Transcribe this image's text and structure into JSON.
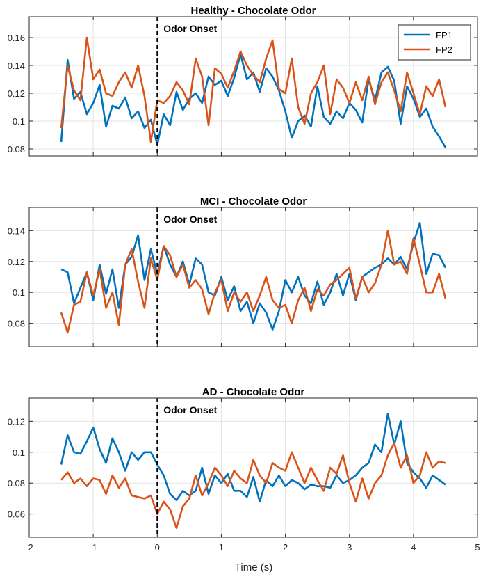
{
  "chart_data": [
    {
      "type": "line",
      "title": "Healthy - Chocolate Odor",
      "annotation": "Odor Onset",
      "annotation_x": 0,
      "xlim": [
        -2,
        5
      ],
      "ylim": [
        0.075,
        0.175
      ],
      "xticks": [
        -2,
        -1,
        0,
        1,
        2,
        3,
        4,
        5
      ],
      "yticks": [
        0.08,
        0.1,
        0.12,
        0.14,
        0.16
      ],
      "ytick_labels": [
        "0.08",
        "0.1",
        "0.12",
        "0.14",
        "0.16"
      ],
      "grid": true,
      "legend_position": "top-right",
      "series": [
        {
          "name": "FP1",
          "color": "#0072BD",
          "x": [
            -1.5,
            -1.4,
            -1.3,
            -1.2,
            -1.1,
            -1.0,
            -0.9,
            -0.8,
            -0.7,
            -0.6,
            -0.5,
            -0.4,
            -0.3,
            -0.2,
            -0.1,
            0.0,
            0.1,
            0.2,
            0.3,
            0.4,
            0.5,
            0.6,
            0.7,
            0.8,
            0.9,
            1.0,
            1.1,
            1.2,
            1.3,
            1.4,
            1.5,
            1.6,
            1.7,
            1.8,
            1.9,
            2.0,
            2.1,
            2.2,
            2.3,
            2.4,
            2.5,
            2.6,
            2.7,
            2.8,
            2.9,
            3.0,
            3.1,
            3.2,
            3.3,
            3.4,
            3.5,
            3.6,
            3.7,
            3.8,
            3.9,
            4.0,
            4.1,
            4.2,
            4.3,
            4.4,
            4.5
          ],
          "values": [
            0.085,
            0.144,
            0.116,
            0.121,
            0.105,
            0.113,
            0.126,
            0.096,
            0.111,
            0.109,
            0.117,
            0.102,
            0.107,
            0.095,
            0.101,
            0.083,
            0.105,
            0.097,
            0.121,
            0.108,
            0.116,
            0.12,
            0.113,
            0.132,
            0.126,
            0.129,
            0.118,
            0.131,
            0.148,
            0.13,
            0.135,
            0.121,
            0.138,
            0.132,
            0.122,
            0.107,
            0.088,
            0.1,
            0.104,
            0.096,
            0.125,
            0.103,
            0.098,
            0.107,
            0.102,
            0.113,
            0.108,
            0.099,
            0.13,
            0.115,
            0.135,
            0.139,
            0.129,
            0.098,
            0.125,
            0.116,
            0.103,
            0.109,
            0.096,
            0.089,
            0.081
          ]
        },
        {
          "name": "FP2",
          "color": "#D95319",
          "x": [
            -1.5,
            -1.4,
            -1.3,
            -1.2,
            -1.1,
            -1.0,
            -0.9,
            -0.8,
            -0.7,
            -0.6,
            -0.5,
            -0.4,
            -0.3,
            -0.2,
            -0.1,
            0.0,
            0.1,
            0.2,
            0.3,
            0.4,
            0.5,
            0.6,
            0.7,
            0.8,
            0.9,
            1.0,
            1.1,
            1.2,
            1.3,
            1.4,
            1.5,
            1.6,
            1.7,
            1.8,
            1.9,
            2.0,
            2.1,
            2.2,
            2.3,
            2.4,
            2.5,
            2.6,
            2.7,
            2.8,
            2.9,
            3.0,
            3.1,
            3.2,
            3.3,
            3.4,
            3.5,
            3.6,
            3.7,
            3.8,
            3.9,
            4.0,
            4.1,
            4.2,
            4.3,
            4.4,
            4.5
          ],
          "values": [
            0.095,
            0.14,
            0.122,
            0.115,
            0.16,
            0.13,
            0.137,
            0.12,
            0.118,
            0.128,
            0.135,
            0.124,
            0.14,
            0.118,
            0.085,
            0.115,
            0.113,
            0.118,
            0.128,
            0.122,
            0.112,
            0.145,
            0.132,
            0.097,
            0.138,
            0.134,
            0.124,
            0.136,
            0.15,
            0.14,
            0.133,
            0.128,
            0.145,
            0.158,
            0.123,
            0.12,
            0.145,
            0.11,
            0.098,
            0.12,
            0.128,
            0.14,
            0.105,
            0.13,
            0.124,
            0.113,
            0.128,
            0.115,
            0.132,
            0.112,
            0.128,
            0.135,
            0.122,
            0.107,
            0.135,
            0.12,
            0.105,
            0.125,
            0.118,
            0.13,
            0.11
          ]
        }
      ]
    },
    {
      "type": "line",
      "title": "MCI - Chocolate Odor",
      "annotation": "Odor Onset",
      "annotation_x": 0,
      "xlim": [
        -2,
        5
      ],
      "ylim": [
        0.065,
        0.155
      ],
      "xticks": [
        -2,
        -1,
        0,
        1,
        2,
        3,
        4,
        5
      ],
      "yticks": [
        0.08,
        0.1,
        0.12,
        0.14
      ],
      "ytick_labels": [
        "0.08",
        "0.1",
        "0.12",
        "0.14"
      ],
      "grid": true,
      "series": [
        {
          "name": "FP1",
          "color": "#0072BD",
          "x": [
            -1.5,
            -1.4,
            -1.3,
            -1.2,
            -1.1,
            -1.0,
            -0.9,
            -0.8,
            -0.7,
            -0.6,
            -0.5,
            -0.4,
            -0.3,
            -0.2,
            -0.1,
            0.0,
            0.1,
            0.2,
            0.3,
            0.4,
            0.5,
            0.6,
            0.7,
            0.8,
            0.9,
            1.0,
            1.1,
            1.2,
            1.3,
            1.4,
            1.5,
            1.6,
            1.7,
            1.8,
            1.9,
            2.0,
            2.1,
            2.2,
            2.3,
            2.4,
            2.5,
            2.6,
            2.7,
            2.8,
            2.9,
            3.0,
            3.1,
            3.2,
            3.3,
            3.4,
            3.5,
            3.6,
            3.7,
            3.8,
            3.9,
            4.0,
            4.1,
            4.2,
            4.3,
            4.4,
            4.5
          ],
          "values": [
            0.115,
            0.113,
            0.093,
            0.103,
            0.113,
            0.095,
            0.118,
            0.099,
            0.115,
            0.09,
            0.118,
            0.123,
            0.137,
            0.108,
            0.128,
            0.112,
            0.13,
            0.118,
            0.11,
            0.12,
            0.105,
            0.122,
            0.118,
            0.1,
            0.098,
            0.11,
            0.095,
            0.104,
            0.088,
            0.094,
            0.08,
            0.093,
            0.087,
            0.076,
            0.088,
            0.108,
            0.1,
            0.11,
            0.098,
            0.093,
            0.107,
            0.092,
            0.1,
            0.112,
            0.098,
            0.112,
            0.095,
            0.11,
            0.113,
            0.116,
            0.118,
            0.122,
            0.118,
            0.123,
            0.115,
            0.132,
            0.145,
            0.112,
            0.125,
            0.124,
            0.116
          ]
        },
        {
          "name": "FP2",
          "color": "#D95319",
          "x": [
            -1.5,
            -1.4,
            -1.3,
            -1.2,
            -1.1,
            -1.0,
            -0.9,
            -0.8,
            -0.7,
            -0.6,
            -0.5,
            -0.4,
            -0.3,
            -0.2,
            -0.1,
            0.0,
            0.1,
            0.2,
            0.3,
            0.4,
            0.5,
            0.6,
            0.7,
            0.8,
            0.9,
            1.0,
            1.1,
            1.2,
            1.3,
            1.4,
            1.5,
            1.6,
            1.7,
            1.8,
            1.9,
            2.0,
            2.1,
            2.2,
            2.3,
            2.4,
            2.5,
            2.6,
            2.7,
            2.8,
            2.9,
            3.0,
            3.1,
            3.2,
            3.3,
            3.4,
            3.5,
            3.6,
            3.7,
            3.8,
            3.9,
            4.0,
            4.1,
            4.2,
            4.3,
            4.4,
            4.5
          ],
          "values": [
            0.087,
            0.074,
            0.092,
            0.094,
            0.113,
            0.098,
            0.115,
            0.09,
            0.1,
            0.079,
            0.118,
            0.128,
            0.107,
            0.09,
            0.122,
            0.108,
            0.13,
            0.124,
            0.11,
            0.118,
            0.103,
            0.108,
            0.102,
            0.086,
            0.1,
            0.108,
            0.088,
            0.1,
            0.094,
            0.1,
            0.088,
            0.098,
            0.11,
            0.095,
            0.09,
            0.092,
            0.08,
            0.095,
            0.103,
            0.088,
            0.102,
            0.098,
            0.105,
            0.108,
            0.112,
            0.116,
            0.096,
            0.11,
            0.1,
            0.106,
            0.118,
            0.14,
            0.118,
            0.12,
            0.112,
            0.135,
            0.118,
            0.1,
            0.1,
            0.112,
            0.096
          ]
        }
      ]
    },
    {
      "type": "line",
      "title": "AD - Chocolate Odor",
      "annotation": "Odor Onset",
      "annotation_x": 0,
      "xlim": [
        -2,
        5
      ],
      "ylim": [
        0.045,
        0.135
      ],
      "xticks": [
        -2,
        -1,
        0,
        1,
        2,
        3,
        4,
        5
      ],
      "xtick_labels": [
        "-2",
        "-1",
        "0",
        "1",
        "2",
        "3",
        "4",
        "5"
      ],
      "yticks": [
        0.06,
        0.08,
        0.1,
        0.12
      ],
      "ytick_labels": [
        "0.06",
        "0.08",
        "0.1",
        "0.12"
      ],
      "xlabel": "Time (s)",
      "grid": true,
      "series": [
        {
          "name": "FP1",
          "color": "#0072BD",
          "x": [
            -1.5,
            -1.4,
            -1.3,
            -1.2,
            -1.1,
            -1.0,
            -0.9,
            -0.8,
            -0.7,
            -0.6,
            -0.5,
            -0.4,
            -0.3,
            -0.2,
            -0.1,
            0.0,
            0.1,
            0.2,
            0.3,
            0.4,
            0.5,
            0.6,
            0.7,
            0.8,
            0.9,
            1.0,
            1.1,
            1.2,
            1.3,
            1.4,
            1.5,
            1.6,
            1.7,
            1.8,
            1.9,
            2.0,
            2.1,
            2.2,
            2.3,
            2.4,
            2.5,
            2.6,
            2.7,
            2.8,
            2.9,
            3.0,
            3.1,
            3.2,
            3.3,
            3.4,
            3.5,
            3.6,
            3.7,
            3.8,
            3.9,
            4.0,
            4.1,
            4.2,
            4.3,
            4.4,
            4.5
          ],
          "values": [
            0.092,
            0.111,
            0.1,
            0.099,
            0.107,
            0.116,
            0.102,
            0.093,
            0.109,
            0.1,
            0.088,
            0.1,
            0.095,
            0.1,
            0.1,
            0.092,
            0.085,
            0.073,
            0.069,
            0.075,
            0.072,
            0.075,
            0.09,
            0.073,
            0.085,
            0.08,
            0.086,
            0.075,
            0.075,
            0.071,
            0.084,
            0.068,
            0.082,
            0.078,
            0.085,
            0.078,
            0.082,
            0.08,
            0.076,
            0.079,
            0.078,
            0.078,
            0.077,
            0.085,
            0.08,
            0.082,
            0.085,
            0.09,
            0.093,
            0.105,
            0.1,
            0.125,
            0.105,
            0.12,
            0.093,
            0.087,
            0.083,
            0.077,
            0.085,
            0.082,
            0.079
          ]
        },
        {
          "name": "FP2",
          "color": "#D95319",
          "x": [
            -1.5,
            -1.4,
            -1.3,
            -1.2,
            -1.1,
            -1.0,
            -0.9,
            -0.8,
            -0.7,
            -0.6,
            -0.5,
            -0.4,
            -0.3,
            -0.2,
            -0.1,
            0.0,
            0.1,
            0.2,
            0.3,
            0.4,
            0.5,
            0.6,
            0.7,
            0.8,
            0.9,
            1.0,
            1.1,
            1.2,
            1.3,
            1.4,
            1.5,
            1.6,
            1.7,
            1.8,
            1.9,
            2.0,
            2.1,
            2.2,
            2.3,
            2.4,
            2.5,
            2.6,
            2.7,
            2.8,
            2.9,
            3.0,
            3.1,
            3.2,
            3.3,
            3.4,
            3.5,
            3.6,
            3.7,
            3.8,
            3.9,
            4.0,
            4.1,
            4.2,
            4.3,
            4.4,
            4.5
          ],
          "values": [
            0.082,
            0.087,
            0.08,
            0.083,
            0.078,
            0.083,
            0.082,
            0.073,
            0.085,
            0.077,
            0.083,
            0.072,
            0.071,
            0.07,
            0.072,
            0.06,
            0.068,
            0.063,
            0.051,
            0.065,
            0.07,
            0.085,
            0.072,
            0.08,
            0.09,
            0.085,
            0.078,
            0.088,
            0.083,
            0.08,
            0.095,
            0.085,
            0.08,
            0.093,
            0.09,
            0.088,
            0.1,
            0.09,
            0.08,
            0.09,
            0.082,
            0.075,
            0.09,
            0.086,
            0.098,
            0.08,
            0.068,
            0.083,
            0.07,
            0.08,
            0.085,
            0.098,
            0.106,
            0.09,
            0.098,
            0.08,
            0.085,
            0.1,
            0.09,
            0.094,
            0.093
          ]
        }
      ]
    }
  ]
}
